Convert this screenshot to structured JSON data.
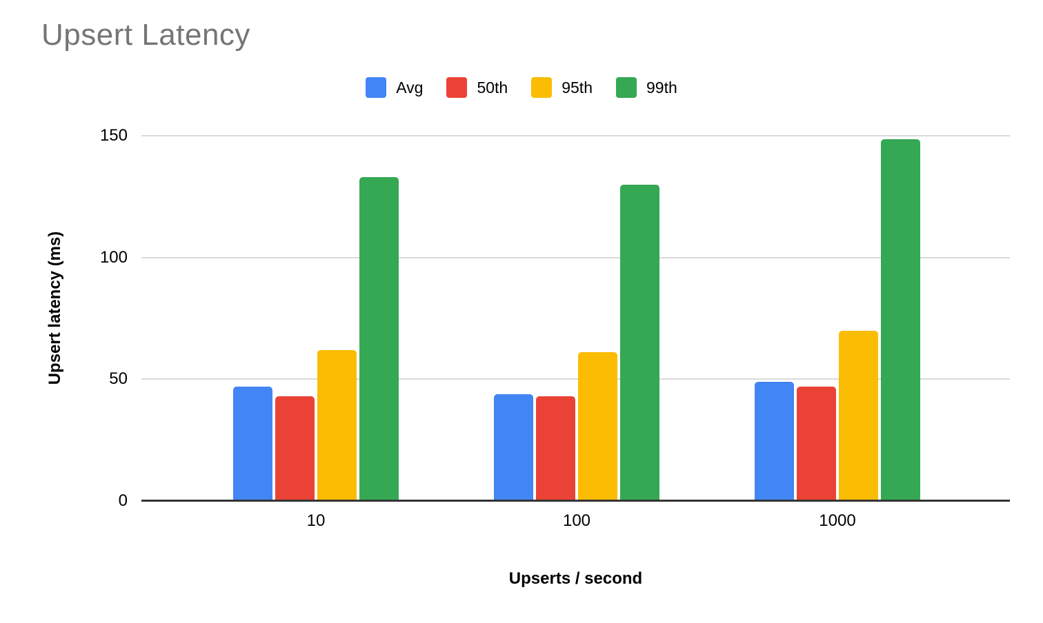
{
  "title": "Upsert Latency",
  "colors": {
    "title": "#757575",
    "axis_text": "#000000",
    "gridline": "#d9d9d9",
    "baseline": "#333333",
    "background": "#ffffff",
    "series_blue": "#4285F4",
    "series_red": "#EA4335",
    "series_yellow": "#FBBC04",
    "series_green": "#34A853"
  },
  "legend": {
    "items": [
      {
        "label": "Avg",
        "color": "#4285F4"
      },
      {
        "label": "50th",
        "color": "#EA4335"
      },
      {
        "label": "95th",
        "color": "#FBBC04"
      },
      {
        "label": "99th",
        "color": "#34A853"
      }
    ]
  },
  "y_axis": {
    "title": "Upsert latency (ms)",
    "ticks": [
      0,
      50,
      100,
      150
    ]
  },
  "x_axis": {
    "title": "Upserts / second",
    "categories": [
      "10",
      "100",
      "1000"
    ]
  },
  "chart_data": {
    "type": "bar",
    "title": "Upsert Latency",
    "xlabel": "Upserts / second",
    "ylabel": "Upsert latency (ms)",
    "categories": [
      "10",
      "100",
      "1000"
    ],
    "series": [
      {
        "name": "Avg",
        "color": "#4285F4",
        "values": [
          47,
          44,
          49
        ]
      },
      {
        "name": "50th",
        "color": "#EA4335",
        "values": [
          43,
          43,
          47
        ]
      },
      {
        "name": "95th",
        "color": "#FBBC04",
        "values": [
          62,
          61,
          70
        ]
      },
      {
        "name": "99th",
        "color": "#34A853",
        "values": [
          133,
          130,
          148.5
        ]
      }
    ],
    "ylim": [
      0,
      150
    ],
    "grid": true,
    "legend_position": "top",
    "bar_grouping": "grouped"
  }
}
